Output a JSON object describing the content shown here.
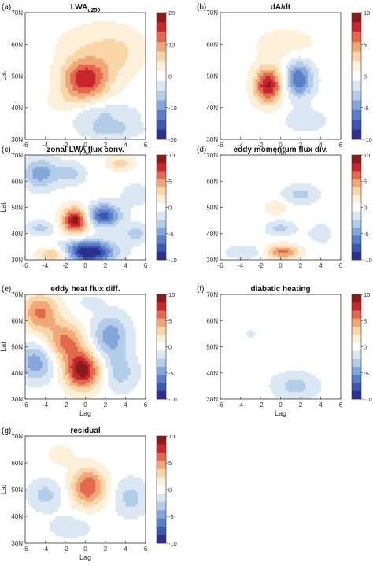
{
  "figure": {
    "type": "multi-panel contour lag-latitude composites"
  },
  "colorscale": {
    "colors": [
      "#2b2f8f",
      "#3d56b0",
      "#5a7fc8",
      "#84a7da",
      "#b3cde8",
      "#dbe8f4",
      "#ffffff",
      "#fdf0d8",
      "#f8d6a8",
      "#f1a877",
      "#e2694e",
      "#c8272e",
      "#8b1a1a"
    ]
  },
  "chart_data": [
    {
      "panel_label": "(a)",
      "type": "heatmap",
      "title_main": "LWA",
      "title_sub": "q250",
      "x": [
        -6,
        -4,
        -2,
        0,
        2,
        4,
        6
      ],
      "xlabel": "Lag",
      "ylabel": "Lat",
      "yticks": [
        "30N",
        "40N",
        "50N",
        "60N",
        "70N"
      ],
      "ylim": [
        30,
        70
      ],
      "xlim": [
        -6,
        6
      ],
      "colorbar": {
        "ticks": [
          20,
          10,
          0,
          -10,
          -20
        ],
        "range": [
          -20,
          20
        ]
      },
      "features": [
        {
          "lag": 0.0,
          "lat": 49,
          "value": 17,
          "lag_spread": 1.6,
          "lat_spread": 4.5
        },
        {
          "lag": 1.5,
          "lat": 60,
          "value": 4,
          "lag_spread": 3.0,
          "lat_spread": 5.0
        },
        {
          "lag": 3.5,
          "lat": 55,
          "value": 3,
          "lag_spread": 1.5,
          "lat_spread": 5.0
        },
        {
          "lag": -2.0,
          "lat": 41,
          "value": 3,
          "lag_spread": 1.5,
          "lat_spread": 3.0
        },
        {
          "lag": 1.5,
          "lat": 38,
          "value": -5,
          "lag_spread": 2.5,
          "lat_spread": 2.5
        },
        {
          "lag": 2.5,
          "lat": 33,
          "value": -6,
          "lag_spread": 2.0,
          "lat_spread": 2.0
        }
      ]
    },
    {
      "panel_label": "(b)",
      "type": "heatmap",
      "title_main": "dA/dt",
      "title_sub": "",
      "x": [
        -6,
        -4,
        -2,
        0,
        2,
        4,
        6
      ],
      "xlabel": "Lag",
      "ylabel": "",
      "yticks": [
        "30N",
        "40N",
        "50N",
        "60N",
        "70N"
      ],
      "ylim": [
        30,
        70
      ],
      "xlim": [
        -6,
        6
      ],
      "colorbar": {
        "ticks": [
          10,
          5,
          0,
          -5,
          -10
        ],
        "range": [
          -10,
          10
        ]
      },
      "features": [
        {
          "lag": -1.2,
          "lat": 47,
          "value": 9,
          "lag_spread": 1.0,
          "lat_spread": 4.0
        },
        {
          "lag": 1.8,
          "lat": 49,
          "value": -7,
          "lag_spread": 1.0,
          "lat_spread": 4.0
        },
        {
          "lag": 0.5,
          "lat": 60,
          "value": 1.5,
          "lag_spread": 2.5,
          "lat_spread": 4.0
        },
        {
          "lag": 2.5,
          "lat": 36,
          "value": -2,
          "lag_spread": 1.5,
          "lat_spread": 2.5
        }
      ]
    },
    {
      "panel_label": "(c)",
      "type": "heatmap",
      "title_main": "zonal LWA flux conv.",
      "title_sub": "",
      "x": [
        -6,
        -4,
        -2,
        0,
        2,
        4,
        6
      ],
      "xlabel": "",
      "ylabel": "Lat",
      "yticks": [
        "30N",
        "40N",
        "50N",
        "60N",
        "70N"
      ],
      "ylim": [
        30,
        70
      ],
      "xlim": [
        -6,
        6
      ],
      "colorbar": {
        "ticks": [
          10,
          5,
          0,
          -5,
          -10
        ],
        "range": [
          -10,
          10
        ]
      },
      "features": [
        {
          "lag": -1.0,
          "lat": 45,
          "value": 10,
          "lag_spread": 0.9,
          "lat_spread": 3.5
        },
        {
          "lag": 1.8,
          "lat": 47,
          "value": -8,
          "lag_spread": 1.2,
          "lat_spread": 3.0
        },
        {
          "lag": 0.3,
          "lat": 33,
          "value": -11,
          "lag_spread": 1.8,
          "lat_spread": 3.0
        },
        {
          "lag": -3.0,
          "lat": 32,
          "value": 5,
          "lag_spread": 1.2,
          "lat_spread": 2.0
        },
        {
          "lag": -4.5,
          "lat": 63,
          "value": -5,
          "lag_spread": 1.2,
          "lat_spread": 4.0
        },
        {
          "lag": -4.5,
          "lat": 42,
          "value": -3,
          "lag_spread": 1.0,
          "lat_spread": 2.0
        },
        {
          "lag": -1.5,
          "lat": 63,
          "value": -3,
          "lag_spread": 1.0,
          "lat_spread": 3.0
        },
        {
          "lag": 3.5,
          "lat": 67,
          "value": 3,
          "lag_spread": 1.0,
          "lat_spread": 2.0
        },
        {
          "lag": 5.0,
          "lat": 40,
          "value": -3,
          "lag_spread": 1.0,
          "lat_spread": 2.5
        },
        {
          "lag": 5.0,
          "lat": 55,
          "value": -2,
          "lag_spread": 1.0,
          "lat_spread": 3.0
        }
      ]
    },
    {
      "panel_label": "(d)",
      "type": "heatmap",
      "title_main": "eddy momentum flux div.",
      "title_sub": "",
      "x": [
        -6,
        -4,
        -2,
        0,
        2,
        4,
        6
      ],
      "xlabel": "",
      "ylabel": "",
      "yticks": [
        "30N",
        "40N",
        "50N",
        "60N",
        "70N"
      ],
      "ylim": [
        30,
        70
      ],
      "xlim": [
        -6,
        6
      ],
      "colorbar": {
        "ticks": [
          10,
          5,
          0,
          -5,
          -10
        ],
        "range": [
          -10,
          10
        ]
      },
      "features": [
        {
          "lag": 0.2,
          "lat": 33,
          "value": 6,
          "lag_spread": 1.2,
          "lat_spread": 2.0
        },
        {
          "lag": 0.0,
          "lat": 42,
          "value": -3,
          "lag_spread": 1.0,
          "lat_spread": 2.0
        },
        {
          "lag": 2.0,
          "lat": 55,
          "value": -3,
          "lag_spread": 1.2,
          "lat_spread": 2.5
        },
        {
          "lag": -3.5,
          "lat": 33,
          "value": -2,
          "lag_spread": 1.5,
          "lat_spread": 2.0
        },
        {
          "lag": -0.5,
          "lat": 50,
          "value": 2,
          "lag_spread": 0.8,
          "lat_spread": 2.0
        },
        {
          "lag": 4.0,
          "lat": 40,
          "value": -1.5,
          "lag_spread": 1.0,
          "lat_spread": 3.0
        }
      ]
    },
    {
      "panel_label": "(e)",
      "type": "heatmap",
      "title_main": "eddy heat flux diff.",
      "title_sub": "",
      "x": [
        -6,
        -4,
        -2,
        0,
        2,
        4,
        6
      ],
      "xlabel": "Lag",
      "ylabel": "Lat",
      "yticks": [
        "30N",
        "40N",
        "50N",
        "60N",
        "70N"
      ],
      "ylim": [
        30,
        70
      ],
      "xlim": [
        -6,
        6
      ],
      "colorbar": {
        "ticks": [
          10,
          5,
          0,
          -5,
          -10
        ],
        "range": [
          -10,
          10
        ]
      },
      "features": [
        {
          "lag": -0.3,
          "lat": 41,
          "value": 10,
          "lag_spread": 1.2,
          "lat_spread": 5.0
        },
        {
          "lag": -2.0,
          "lat": 52,
          "value": 6,
          "lag_spread": 1.3,
          "lat_spread": 5.0
        },
        {
          "lag": -4.5,
          "lat": 63,
          "value": 6,
          "lag_spread": 1.3,
          "lat_spread": 5.0
        },
        {
          "lag": -5.0,
          "lat": 44,
          "value": -5,
          "lag_spread": 1.3,
          "lat_spread": 5.0
        },
        {
          "lag": 2.5,
          "lat": 54,
          "value": -5,
          "lag_spread": 1.3,
          "lat_spread": 6.0
        },
        {
          "lag": 3.5,
          "lat": 40,
          "value": -3,
          "lag_spread": 1.2,
          "lat_spread": 5.0
        },
        {
          "lag": 0.5,
          "lat": 67,
          "value": -1.5,
          "lag_spread": 0.8,
          "lat_spread": 2.0
        }
      ]
    },
    {
      "panel_label": "(f)",
      "type": "heatmap",
      "title_main": "diabatic heating",
      "title_sub": "",
      "x": [
        -6,
        -4,
        -2,
        0,
        2,
        4,
        6
      ],
      "xlabel": "Lag",
      "ylabel": "",
      "yticks": [
        "30N",
        "40N",
        "50N",
        "60N",
        "70N"
      ],
      "ylim": [
        30,
        70
      ],
      "xlim": [
        -6,
        6
      ],
      "colorbar": {
        "ticks": [
          10,
          5,
          0,
          -5,
          -10
        ],
        "range": [
          -10,
          10
        ]
      },
      "features": [
        {
          "lag": 1.5,
          "lat": 35,
          "value": -3,
          "lag_spread": 1.6,
          "lat_spread": 3.5
        },
        {
          "lag": -3.0,
          "lat": 55,
          "value": -0.8,
          "lag_spread": 3.0,
          "lat_spread": 8.0
        }
      ]
    },
    {
      "panel_label": "(g)",
      "type": "heatmap",
      "title_main": "residual",
      "title_sub": "",
      "x": [
        -6,
        -4,
        -2,
        0,
        2,
        4,
        6
      ],
      "xlabel": "Lag",
      "ylabel": "Lat",
      "yticks": [
        "30N",
        "40N",
        "50N",
        "60N",
        "70N"
      ],
      "ylim": [
        30,
        70
      ],
      "xlim": [
        -6,
        6
      ],
      "colorbar": {
        "ticks": [
          10,
          5,
          0,
          -5,
          -10
        ],
        "range": [
          -10,
          10
        ]
      },
      "features": [
        {
          "lag": 0.3,
          "lat": 51,
          "value": 7,
          "lag_spread": 1.2,
          "lat_spread": 5.0
        },
        {
          "lag": -4.0,
          "lat": 48,
          "value": -3,
          "lag_spread": 1.2,
          "lat_spread": 4.0
        },
        {
          "lag": 4.5,
          "lat": 47,
          "value": -3,
          "lag_spread": 1.2,
          "lat_spread": 5.0
        },
        {
          "lag": -1.5,
          "lat": 36,
          "value": -2,
          "lag_spread": 1.5,
          "lat_spread": 3.0
        },
        {
          "lag": -2.5,
          "lat": 63,
          "value": 1.5,
          "lag_spread": 1.0,
          "lat_spread": 3.0
        }
      ]
    }
  ]
}
